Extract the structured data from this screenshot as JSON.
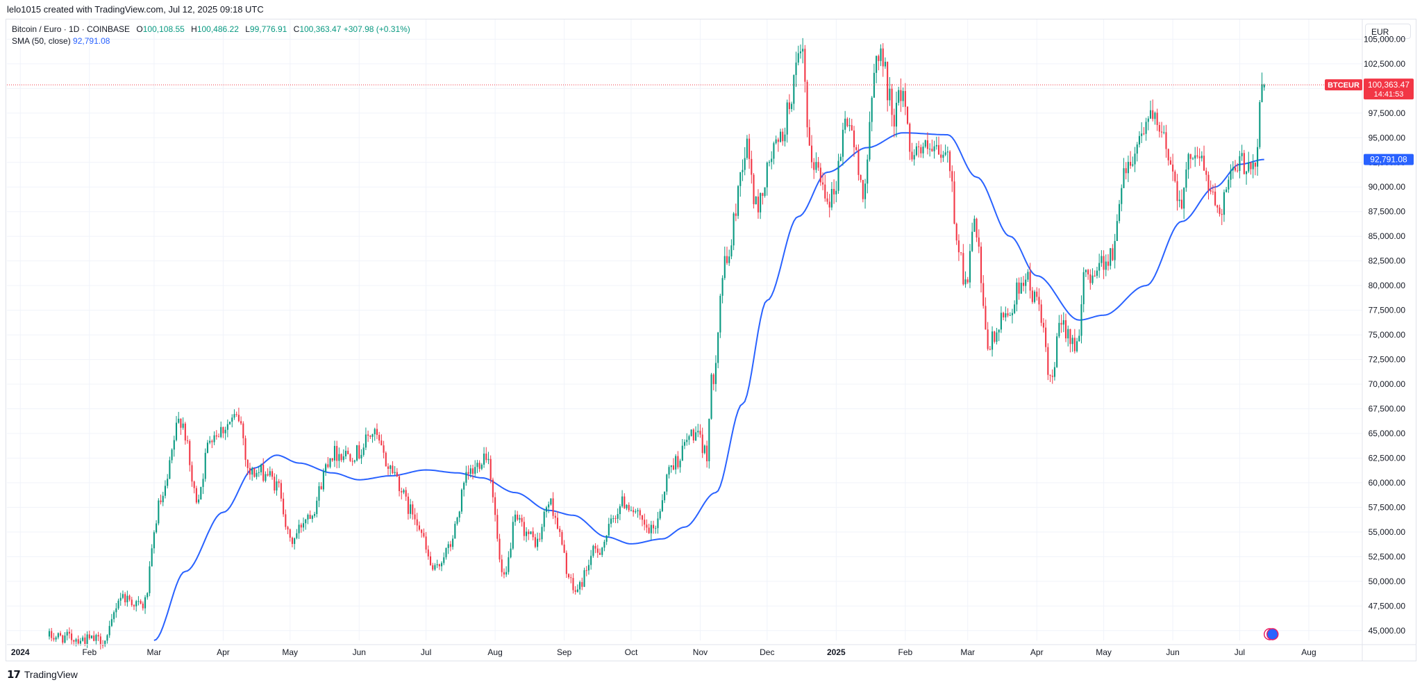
{
  "attribution": "lelo1015 created with TradingView.com, Jul 12, 2025 09:18 UTC",
  "legend": {
    "symbol": "Bitcoin / Euro · 1D · COINBASE",
    "o_key": "O",
    "o": "100,108.55",
    "h_key": "H",
    "h": "100,486.22",
    "l_key": "L",
    "l": "99,776.91",
    "c_key": "C",
    "c": "100,363.47",
    "change": "+307.98 (+0.31%)",
    "sma_label": "SMA (50, close)",
    "sma_value": "92,791.08"
  },
  "currency": "EUR",
  "badges": {
    "symbol": "BTCEUR",
    "price": "100,363.47",
    "countdown": "14:41:53",
    "sma": "92,791.08"
  },
  "footer": {
    "logo": "𝟭𝟳",
    "brand": "TradingView"
  },
  "colors": {
    "up": "#089981",
    "down": "#f23645",
    "sma": "#2962ff",
    "grid": "#f0f3fa",
    "price_line": "#f23645"
  },
  "chart_data": {
    "type": "candlestick",
    "symbol": "BTCEUR",
    "timeframe": "1D",
    "y_axis_ticks": [
      "45,000.00",
      "47,500.00",
      "50,000.00",
      "52,500.00",
      "55,000.00",
      "57,500.00",
      "60,000.00",
      "62,500.00",
      "65,000.00",
      "67,500.00",
      "70,000.00",
      "72,500.00",
      "75,000.00",
      "77,500.00",
      "80,000.00",
      "82,500.00",
      "85,000.00",
      "87,500.00",
      "90,000.00",
      "92,500.00",
      "95,000.00",
      "97,500.00",
      "100,000.00",
      "102,500.00",
      "105,000.00"
    ],
    "ylim": [
      44000,
      107000
    ],
    "x_axis_ticks": [
      {
        "label": "2024",
        "bold": true,
        "date": "2024-01-01"
      },
      {
        "label": "Feb",
        "date": "2024-02-01"
      },
      {
        "label": "Mar",
        "date": "2024-03-01"
      },
      {
        "label": "Apr",
        "date": "2024-04-01"
      },
      {
        "label": "May",
        "date": "2024-05-01"
      },
      {
        "label": "Jun",
        "date": "2024-06-01"
      },
      {
        "label": "Jul",
        "date": "2024-07-01"
      },
      {
        "label": "Aug",
        "date": "2024-08-01"
      },
      {
        "label": "Sep",
        "date": "2024-09-01"
      },
      {
        "label": "Oct",
        "date": "2024-10-01"
      },
      {
        "label": "Nov",
        "date": "2024-11-01"
      },
      {
        "label": "Dec",
        "date": "2024-12-01"
      },
      {
        "label": "2025",
        "bold": true,
        "date": "2025-01-01"
      },
      {
        "label": "Feb",
        "date": "2025-02-01"
      },
      {
        "label": "Mar",
        "date": "2025-03-01"
      },
      {
        "label": "Apr",
        "date": "2025-04-01"
      },
      {
        "label": "May",
        "date": "2025-05-01"
      },
      {
        "label": "Jun",
        "date": "2025-06-01"
      },
      {
        "label": "Jul",
        "date": "2025-07-01"
      },
      {
        "label": "Aug",
        "date": "2025-08-01"
      }
    ],
    "last_price": 100363.47,
    "price_anchors": [
      [
        "2024-01-14",
        44400
      ],
      [
        "2024-02-08",
        44000
      ],
      [
        "2024-02-15",
        48500
      ],
      [
        "2024-02-25",
        47500
      ],
      [
        "2024-03-04",
        58000
      ],
      [
        "2024-03-13",
        66500
      ],
      [
        "2024-03-20",
        58500
      ],
      [
        "2024-03-27",
        65000
      ],
      [
        "2024-04-08",
        66500
      ],
      [
        "2024-04-13",
        61000
      ],
      [
        "2024-04-20",
        61000
      ],
      [
        "2024-04-26",
        59500
      ],
      [
        "2024-05-01",
        54000
      ],
      [
        "2024-05-10",
        57000
      ],
      [
        "2024-05-20",
        63000
      ],
      [
        "2024-05-31",
        63000
      ],
      [
        "2024-06-07",
        65000
      ],
      [
        "2024-06-15",
        61500
      ],
      [
        "2024-06-25",
        57000
      ],
      [
        "2024-07-05",
        51000
      ],
      [
        "2024-07-10",
        53000
      ],
      [
        "2024-07-21",
        61000
      ],
      [
        "2024-07-28",
        63000
      ],
      [
        "2024-08-05",
        50000
      ],
      [
        "2024-08-10",
        56000
      ],
      [
        "2024-08-20",
        54000
      ],
      [
        "2024-08-25",
        58000
      ],
      [
        "2024-09-06",
        49000
      ],
      [
        "2024-09-15",
        53000
      ],
      [
        "2024-09-28",
        58000
      ],
      [
        "2024-10-10",
        55000
      ],
      [
        "2024-10-20",
        62000
      ],
      [
        "2024-10-29",
        65000
      ],
      [
        "2024-11-04",
        63000
      ],
      [
        "2024-11-06",
        70000
      ],
      [
        "2024-11-12",
        82000
      ],
      [
        "2024-11-22",
        94000
      ],
      [
        "2024-11-26",
        88000
      ],
      [
        "2024-12-05",
        94000
      ],
      [
        "2024-12-17",
        103000
      ],
      [
        "2024-12-20",
        93000
      ],
      [
        "2024-12-30",
        89000
      ],
      [
        "2025-01-06",
        97000
      ],
      [
        "2025-01-13",
        90000
      ],
      [
        "2025-01-20",
        104000
      ],
      [
        "2025-01-27",
        97500
      ],
      [
        "2025-01-31",
        100000
      ],
      [
        "2025-02-03",
        94000
      ],
      [
        "2025-02-20",
        93000
      ],
      [
        "2025-02-25",
        84000
      ],
      [
        "2025-02-28",
        80000
      ],
      [
        "2025-03-04",
        86000
      ],
      [
        "2025-03-10",
        74000
      ],
      [
        "2025-03-20",
        77500
      ],
      [
        "2025-03-26",
        81000
      ],
      [
        "2025-04-02",
        78000
      ],
      [
        "2025-04-07",
        70000
      ],
      [
        "2025-04-12",
        76000
      ],
      [
        "2025-04-20",
        74000
      ],
      [
        "2025-04-22",
        81000
      ],
      [
        "2025-05-05",
        83000
      ],
      [
        "2025-05-10",
        92000
      ],
      [
        "2025-05-22",
        97000
      ],
      [
        "2025-05-27",
        95000
      ],
      [
        "2025-06-05",
        89000
      ],
      [
        "2025-06-10",
        94000
      ],
      [
        "2025-06-22",
        88000
      ],
      [
        "2025-06-27",
        91000
      ],
      [
        "2025-07-03",
        92500
      ],
      [
        "2025-07-08",
        92500
      ],
      [
        "2025-07-11",
        100100
      ],
      [
        "2025-07-12",
        100363.47
      ]
    ],
    "sma": {
      "name": "SMA (50, close)",
      "last": 92791.08,
      "anchors": [
        [
          "2024-03-01",
          44000
        ],
        [
          "2024-03-15",
          51000
        ],
        [
          "2024-04-01",
          57000
        ],
        [
          "2024-04-15",
          61500
        ],
        [
          "2024-04-25",
          62800
        ],
        [
          "2024-05-05",
          62000
        ],
        [
          "2024-05-20",
          61000
        ],
        [
          "2024-06-01",
          60300
        ],
        [
          "2024-06-15",
          60700
        ],
        [
          "2024-07-01",
          61300
        ],
        [
          "2024-07-15",
          61000
        ],
        [
          "2024-07-26",
          60500
        ],
        [
          "2024-08-10",
          59000
        ],
        [
          "2024-08-25",
          57200
        ],
        [
          "2024-09-05",
          56700
        ],
        [
          "2024-09-20",
          54500
        ],
        [
          "2024-10-01",
          53800
        ],
        [
          "2024-10-15",
          54300
        ],
        [
          "2024-10-25",
          55500
        ],
        [
          "2024-11-08",
          59000
        ],
        [
          "2024-11-20",
          68000
        ],
        [
          "2024-12-01",
          78500
        ],
        [
          "2024-12-15",
          87000
        ],
        [
          "2024-12-28",
          91500
        ],
        [
          "2025-01-15",
          94000
        ],
        [
          "2025-01-31",
          95500
        ],
        [
          "2025-02-20",
          95300
        ],
        [
          "2025-03-05",
          91000
        ],
        [
          "2025-03-20",
          85000
        ],
        [
          "2025-04-01",
          81000
        ],
        [
          "2025-04-20",
          76500
        ],
        [
          "2025-05-01",
          77000
        ],
        [
          "2025-05-20",
          80000
        ],
        [
          "2025-06-05",
          86500
        ],
        [
          "2025-06-20",
          90000
        ],
        [
          "2025-07-01",
          92300
        ],
        [
          "2025-07-12",
          92791.08
        ]
      ]
    }
  }
}
